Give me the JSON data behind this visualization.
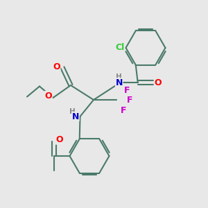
{
  "bg_color": "#e8e8e8",
  "bond_color": "#4a7a6a",
  "bond_width": 1.5,
  "atom_colors": {
    "O": "#ff0000",
    "N": "#0000cc",
    "F": "#cc00cc",
    "Cl": "#33cc33",
    "H_label": "#888888"
  },
  "font_size": 8.5,
  "fig_size": [
    3.0,
    3.0
  ],
  "dpi": 100
}
